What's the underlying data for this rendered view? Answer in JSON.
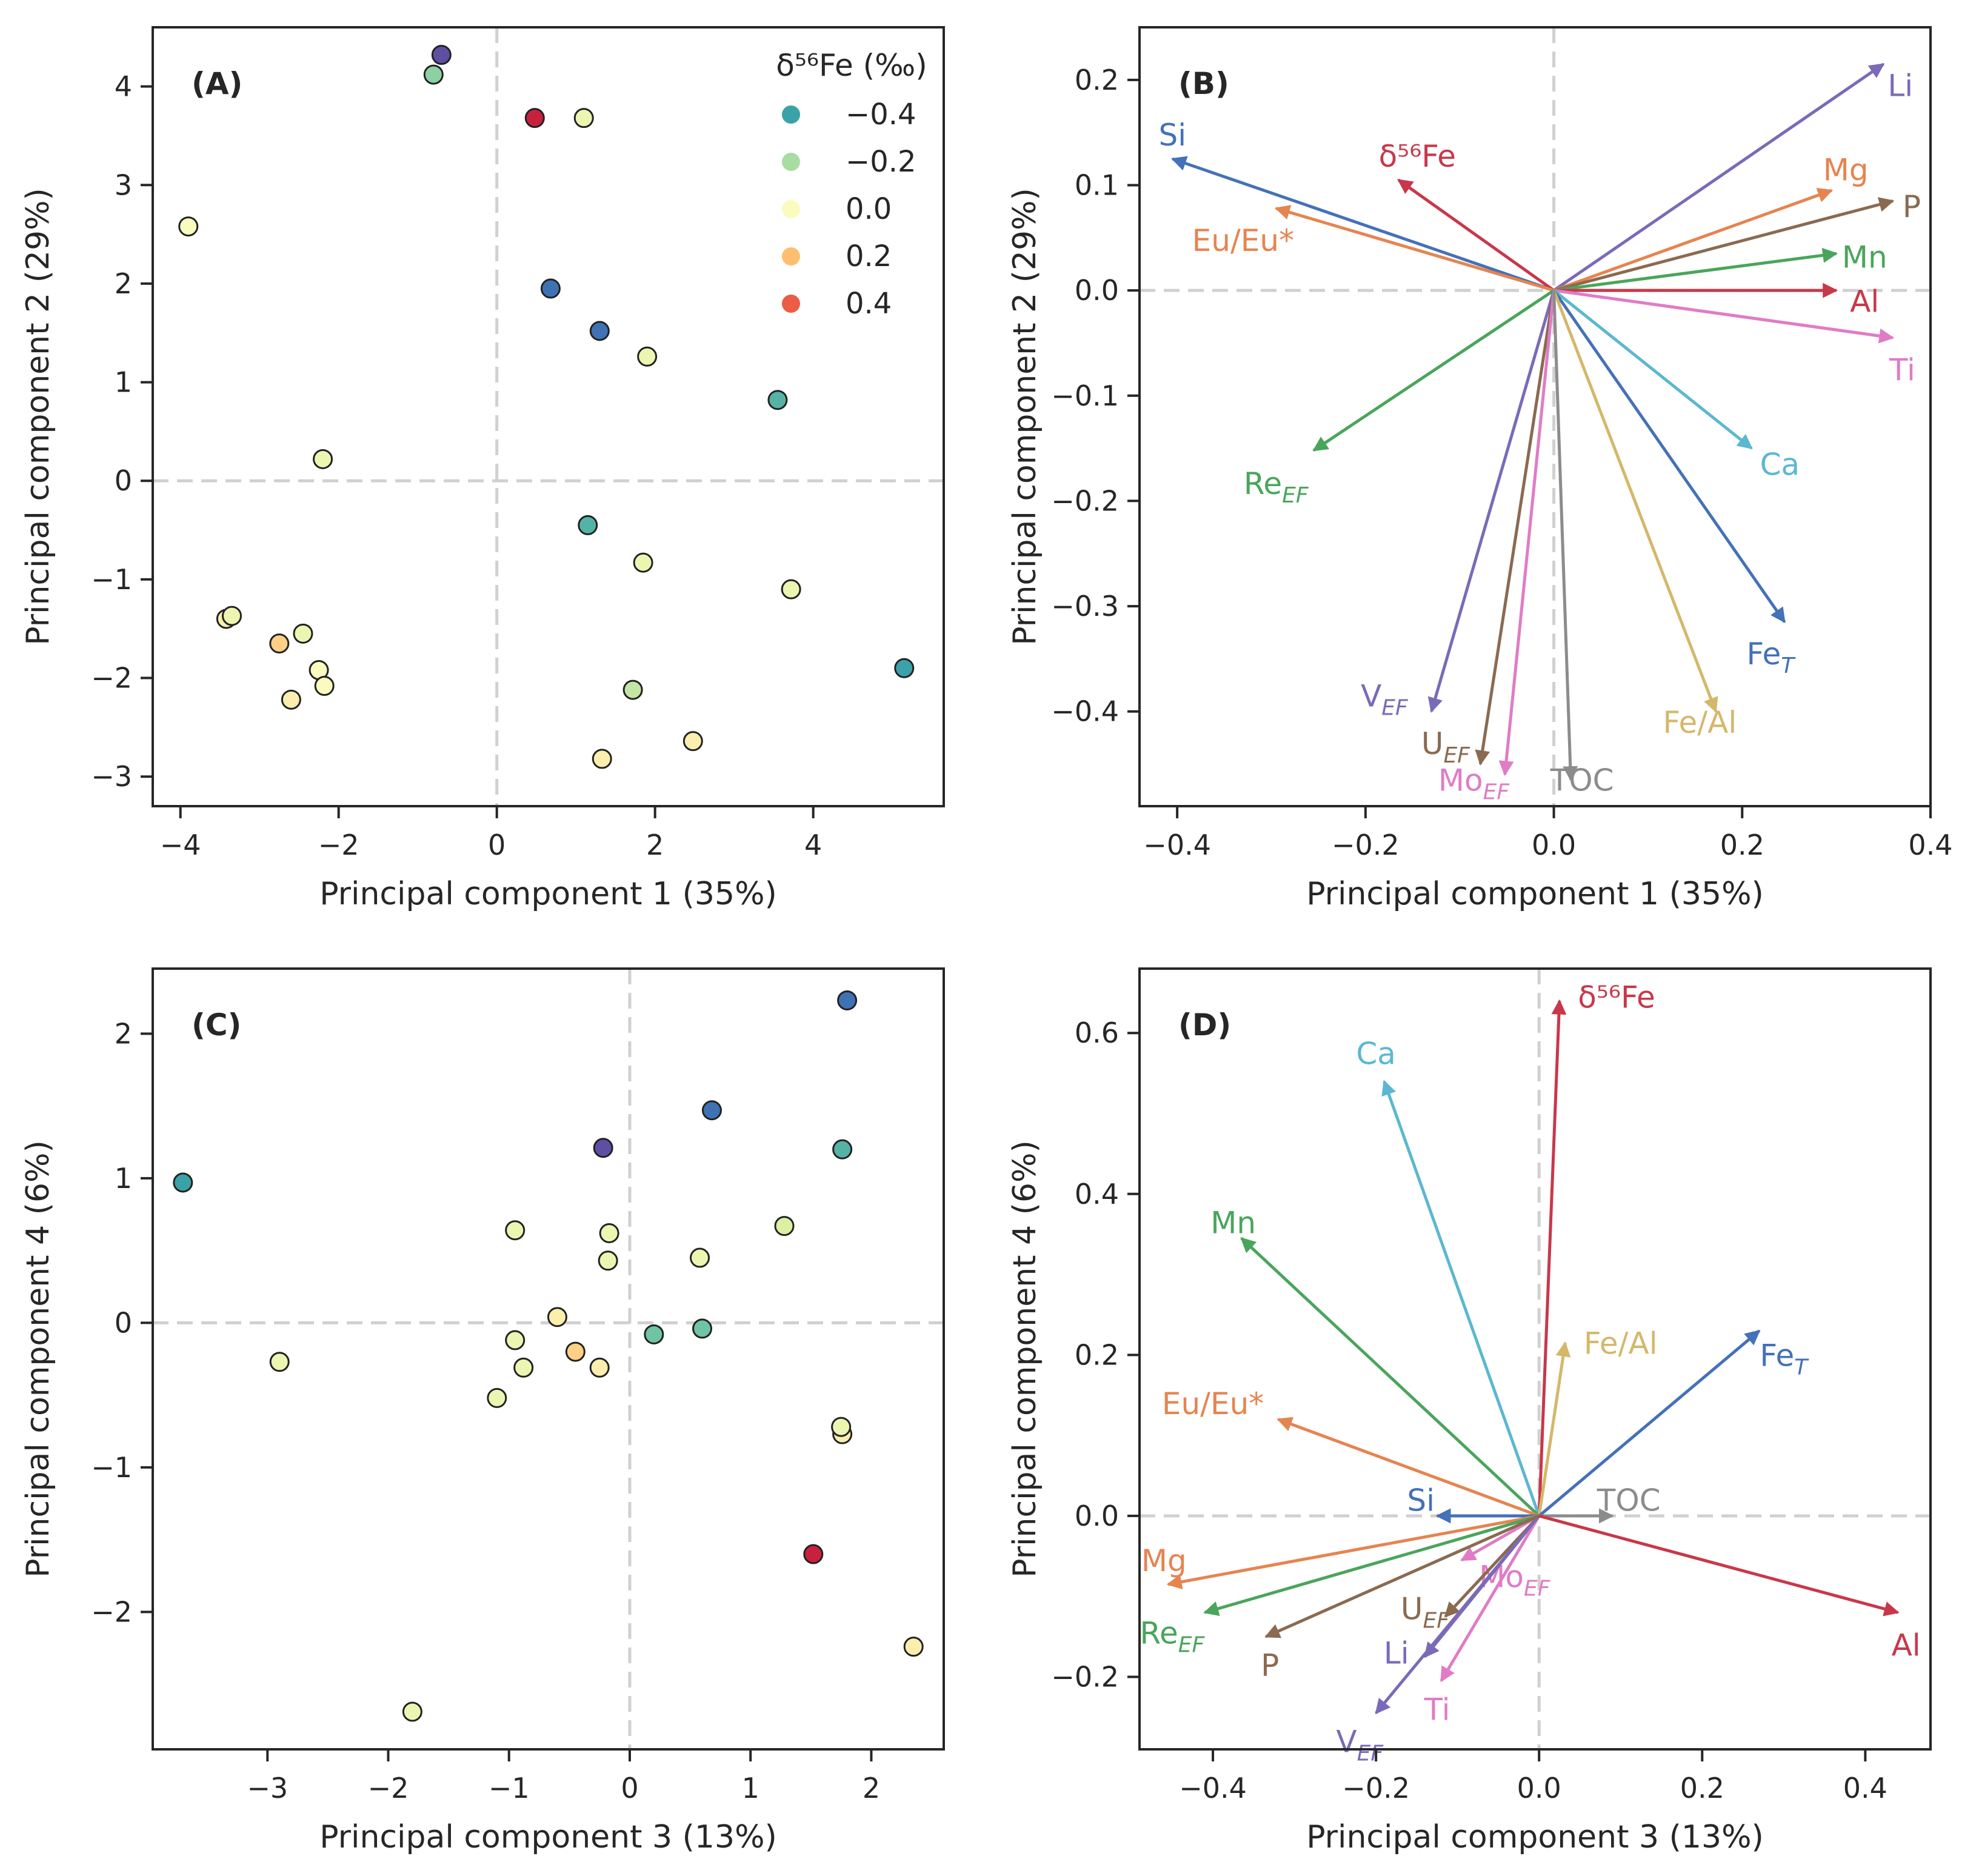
{
  "colors": {
    "red": "#c8384a",
    "blue": "#4471b8",
    "orange": "#e68450",
    "green": "#4aa55c",
    "purple": "#7b6ab8",
    "brown": "#8b6a50",
    "gray": "#8c8c8c",
    "pink": "#e07cc6",
    "cyan": "#5bb8d0",
    "khaki": "#d4b86a"
  },
  "color_scale": {
    "stops": [
      {
        "v": -0.6,
        "c": "#5e4fa2"
      },
      {
        "v": -0.5,
        "c": "#3f72b4"
      },
      {
        "v": -0.4,
        "c": "#3aa2a8"
      },
      {
        "v": -0.3,
        "c": "#6fc4a4"
      },
      {
        "v": -0.2,
        "c": "#a9dca2"
      },
      {
        "v": -0.1,
        "c": "#dcf0a2"
      },
      {
        "v": 0.0,
        "c": "#fbfbbf"
      },
      {
        "v": 0.1,
        "c": "#fde19a"
      },
      {
        "v": 0.2,
        "c": "#fdbf6f"
      },
      {
        "v": 0.3,
        "c": "#f98e52"
      },
      {
        "v": 0.4,
        "c": "#eb5d45"
      },
      {
        "v": 0.5,
        "c": "#c8213f"
      }
    ]
  },
  "chart_data": [
    {
      "type": "scatter",
      "panel_label": "(A)",
      "xlabel": "Principal component 1 (35%)",
      "ylabel": "Principal component 2 (29%)",
      "xlim": [
        -4.35,
        5.65
      ],
      "ylim": [
        -3.3,
        4.6
      ],
      "xticks": [
        -4,
        -2,
        0,
        2,
        4
      ],
      "yticks": [
        -3,
        -2,
        -1,
        0,
        1,
        2,
        3,
        4
      ],
      "legend": {
        "title": "δ⁵⁶Fe (‰)",
        "position": "top-right",
        "entries": [
          {
            "label": "−0.4",
            "value": -0.4
          },
          {
            "label": "−0.2",
            "value": -0.2
          },
          {
            "label": "0.0",
            "value": 0.0
          },
          {
            "label": "0.2",
            "value": 0.2
          },
          {
            "label": "0.4",
            "value": 0.4
          }
        ]
      },
      "points": [
        {
          "x": -0.7,
          "y": 4.32,
          "v": -0.6
        },
        {
          "x": -0.8,
          "y": 4.12,
          "v": -0.25
        },
        {
          "x": 0.48,
          "y": 3.68,
          "v": 0.5
        },
        {
          "x": 1.1,
          "y": 3.68,
          "v": -0.05
        },
        {
          "x": -3.9,
          "y": 2.58,
          "v": 0.0
        },
        {
          "x": 0.68,
          "y": 1.95,
          "v": -0.5
        },
        {
          "x": 1.3,
          "y": 1.52,
          "v": -0.5
        },
        {
          "x": 1.9,
          "y": 1.26,
          "v": -0.05
        },
        {
          "x": 3.55,
          "y": 0.82,
          "v": -0.35
        },
        {
          "x": -2.2,
          "y": 0.22,
          "v": -0.05
        },
        {
          "x": 1.15,
          "y": -0.45,
          "v": -0.35
        },
        {
          "x": 1.85,
          "y": -0.83,
          "v": -0.05
        },
        {
          "x": 3.72,
          "y": -1.1,
          "v": -0.05
        },
        {
          "x": -3.42,
          "y": -1.4,
          "v": 0.05
        },
        {
          "x": -3.35,
          "y": -1.37,
          "v": -0.05
        },
        {
          "x": -2.45,
          "y": -1.55,
          "v": -0.05
        },
        {
          "x": -2.75,
          "y": -1.65,
          "v": 0.15
        },
        {
          "x": -2.25,
          "y": -1.92,
          "v": 0.0
        },
        {
          "x": -2.18,
          "y": -2.08,
          "v": 0.0
        },
        {
          "x": -2.6,
          "y": -2.22,
          "v": 0.05
        },
        {
          "x": 5.15,
          "y": -1.9,
          "v": -0.4
        },
        {
          "x": 1.72,
          "y": -2.12,
          "v": -0.15
        },
        {
          "x": 2.48,
          "y": -2.64,
          "v": 0.05
        },
        {
          "x": 1.33,
          "y": -2.82,
          "v": 0.05
        }
      ]
    },
    {
      "type": "biplot",
      "panel_label": "(B)",
      "xlabel": "Principal component 1 (35%)",
      "ylabel": "Principal component 2 (29%)",
      "xlim": [
        -0.44,
        0.4
      ],
      "ylim": [
        -0.49,
        0.25
      ],
      "xticks": [
        -0.4,
        -0.2,
        0.0,
        0.2,
        0.4
      ],
      "yticks": [
        -0.4,
        -0.3,
        -0.2,
        -0.1,
        0.0,
        0.1,
        0.2
      ],
      "tick_decimals": 1,
      "vectors": [
        {
          "label": "Li",
          "x": 0.35,
          "y": 0.215,
          "color": "purple",
          "lx": 0.368,
          "ly": 0.195
        },
        {
          "label": "Si",
          "x": -0.405,
          "y": 0.125,
          "color": "blue",
          "lx": -0.405,
          "ly": 0.148
        },
        {
          "label": "δ⁵⁶Fe",
          "x": -0.165,
          "y": 0.105,
          "color": "red",
          "lx": -0.145,
          "ly": 0.128
        },
        {
          "label": "Mg",
          "x": 0.295,
          "y": 0.095,
          "color": "orange",
          "lx": 0.31,
          "ly": 0.115
        },
        {
          "label": "P",
          "x": 0.36,
          "y": 0.085,
          "color": "brown",
          "lx": 0.38,
          "ly": 0.08
        },
        {
          "label": "Eu/Eu*",
          "x": -0.295,
          "y": 0.078,
          "color": "orange",
          "lx": -0.33,
          "ly": 0.048
        },
        {
          "label": "Mn",
          "x": 0.3,
          "y": 0.035,
          "color": "green",
          "lx": 0.33,
          "ly": 0.032
        },
        {
          "label": "Al",
          "x": 0.3,
          "y": 0.0,
          "color": "red",
          "lx": 0.33,
          "ly": -0.01
        },
        {
          "label": "Ti",
          "x": 0.36,
          "y": -0.045,
          "color": "pink",
          "lx": 0.37,
          "ly": -0.075
        },
        {
          "label": "Ca",
          "x": 0.21,
          "y": -0.15,
          "color": "cyan",
          "lx": 0.24,
          "ly": -0.165
        },
        {
          "label": "Re",
          "sub": "EF",
          "x": -0.255,
          "y": -0.152,
          "color": "green",
          "lx": -0.295,
          "ly": -0.183
        },
        {
          "label": "Fe",
          "sub": "T",
          "x": 0.245,
          "y": -0.315,
          "color": "blue",
          "lx": 0.23,
          "ly": -0.345
        },
        {
          "label": "Fe/Al",
          "x": 0.172,
          "y": -0.4,
          "color": "khaki",
          "lx": 0.155,
          "ly": -0.41
        },
        {
          "label": "V",
          "sub": "EF",
          "x": -0.13,
          "y": -0.4,
          "color": "purple",
          "lx": -0.18,
          "ly": -0.385
        },
        {
          "label": "U",
          "sub": "EF",
          "x": -0.078,
          "y": -0.45,
          "color": "brown",
          "lx": -0.115,
          "ly": -0.43
        },
        {
          "label": "Mo",
          "sub": "EF",
          "x": -0.052,
          "y": -0.46,
          "color": "pink",
          "lx": -0.085,
          "ly": -0.465
        },
        {
          "label": "TOC",
          "x": 0.018,
          "y": -0.465,
          "color": "gray",
          "lx": 0.03,
          "ly": -0.465
        }
      ]
    },
    {
      "type": "scatter",
      "panel_label": "(C)",
      "xlabel": "Principal component 3 (13%)",
      "ylabel": "Principal component 4 (6%)",
      "xlim": [
        -3.95,
        2.6
      ],
      "ylim": [
        -2.95,
        2.45
      ],
      "xticks": [
        -3,
        -2,
        -1,
        0,
        1,
        2
      ],
      "yticks": [
        -2,
        -1,
        0,
        1,
        2
      ],
      "points": [
        {
          "x": 1.8,
          "y": 2.23,
          "v": -0.5
        },
        {
          "x": 0.68,
          "y": 1.47,
          "v": -0.5
        },
        {
          "x": -0.22,
          "y": 1.21,
          "v": -0.6
        },
        {
          "x": 1.76,
          "y": 1.2,
          "v": -0.35
        },
        {
          "x": -3.7,
          "y": 0.97,
          "v": -0.4
        },
        {
          "x": 1.28,
          "y": 0.67,
          "v": -0.1
        },
        {
          "x": -0.95,
          "y": 0.64,
          "v": -0.05
        },
        {
          "x": -0.17,
          "y": 0.62,
          "v": -0.05
        },
        {
          "x": 0.58,
          "y": 0.45,
          "v": -0.05
        },
        {
          "x": -0.18,
          "y": 0.43,
          "v": -0.05
        },
        {
          "x": -0.6,
          "y": 0.04,
          "v": 0.05
        },
        {
          "x": 0.2,
          "y": -0.08,
          "v": -0.3
        },
        {
          "x": 0.6,
          "y": -0.04,
          "v": -0.3
        },
        {
          "x": -0.95,
          "y": -0.12,
          "v": -0.05
        },
        {
          "x": -0.45,
          "y": -0.2,
          "v": 0.15
        },
        {
          "x": -2.9,
          "y": -0.27,
          "v": -0.05
        },
        {
          "x": -0.88,
          "y": -0.31,
          "v": -0.05
        },
        {
          "x": -0.25,
          "y": -0.31,
          "v": 0.05
        },
        {
          "x": -1.1,
          "y": -0.52,
          "v": -0.05
        },
        {
          "x": 1.76,
          "y": -0.77,
          "v": 0.05
        },
        {
          "x": 1.75,
          "y": -0.72,
          "v": -0.05
        },
        {
          "x": 1.52,
          "y": -1.6,
          "v": 0.5
        },
        {
          "x": 2.35,
          "y": -2.24,
          "v": 0.05
        },
        {
          "x": -1.8,
          "y": -2.69,
          "v": -0.05
        }
      ]
    },
    {
      "type": "biplot",
      "panel_label": "(D)",
      "xlabel": "Principal component 3 (13%)",
      "ylabel": "Principal component 4 (6%)",
      "xlim": [
        -0.49,
        0.48
      ],
      "ylim": [
        -0.29,
        0.68
      ],
      "xticks": [
        -0.4,
        -0.2,
        0.0,
        0.2,
        0.4
      ],
      "yticks": [
        -0.2,
        0.0,
        0.2,
        0.4,
        0.6
      ],
      "tick_decimals": 1,
      "vectors": [
        {
          "label": "δ⁵⁶Fe",
          "x": 0.025,
          "y": 0.64,
          "color": "red",
          "lx": 0.095,
          "ly": 0.645
        },
        {
          "label": "Ca",
          "x": -0.19,
          "y": 0.54,
          "color": "cyan",
          "lx": -0.2,
          "ly": 0.575
        },
        {
          "label": "Mn",
          "x": -0.365,
          "y": 0.345,
          "color": "green",
          "lx": -0.375,
          "ly": 0.365
        },
        {
          "label": "Fe/Al",
          "x": 0.032,
          "y": 0.215,
          "color": "khaki",
          "lx": 0.1,
          "ly": 0.215
        },
        {
          "label": "Fe",
          "sub": "T",
          "x": 0.27,
          "y": 0.23,
          "color": "blue",
          "lx": 0.3,
          "ly": 0.2
        },
        {
          "label": "Eu/Eu*",
          "x": -0.32,
          "y": 0.12,
          "color": "orange",
          "lx": -0.4,
          "ly": 0.14
        },
        {
          "label": "Si",
          "x": -0.125,
          "y": 0.0,
          "color": "blue",
          "lx": -0.145,
          "ly": 0.02
        },
        {
          "label": "TOC",
          "x": 0.09,
          "y": 0.0,
          "color": "gray",
          "lx": 0.11,
          "ly": 0.02
        },
        {
          "label": "Mo",
          "sub": "EF",
          "x": -0.095,
          "y": -0.055,
          "color": "pink",
          "lx": -0.03,
          "ly": -0.075
        },
        {
          "label": "U",
          "sub": "EF",
          "x": -0.115,
          "y": -0.125,
          "color": "brown",
          "lx": -0.14,
          "ly": -0.115
        },
        {
          "label": "Li",
          "x": -0.14,
          "y": -0.175,
          "color": "purple",
          "lx": -0.175,
          "ly": -0.17
        },
        {
          "label": "Ti",
          "x": -0.12,
          "y": -0.205,
          "color": "pink",
          "lx": -0.125,
          "ly": -0.24
        },
        {
          "label": "V",
          "sub": "EF",
          "x": -0.2,
          "y": -0.245,
          "color": "purple",
          "lx": -0.22,
          "ly": -0.28
        },
        {
          "label": "Mg",
          "x": -0.455,
          "y": -0.085,
          "color": "orange",
          "lx": -0.46,
          "ly": -0.055
        },
        {
          "label": "Re",
          "sub": "EF",
          "x": -0.41,
          "y": -0.12,
          "color": "green",
          "lx": -0.45,
          "ly": -0.145
        },
        {
          "label": "P",
          "x": -0.335,
          "y": -0.15,
          "color": "brown",
          "lx": -0.33,
          "ly": -0.185
        },
        {
          "label": "Al",
          "x": 0.44,
          "y": -0.12,
          "color": "red",
          "lx": 0.45,
          "ly": -0.16
        }
      ]
    }
  ]
}
